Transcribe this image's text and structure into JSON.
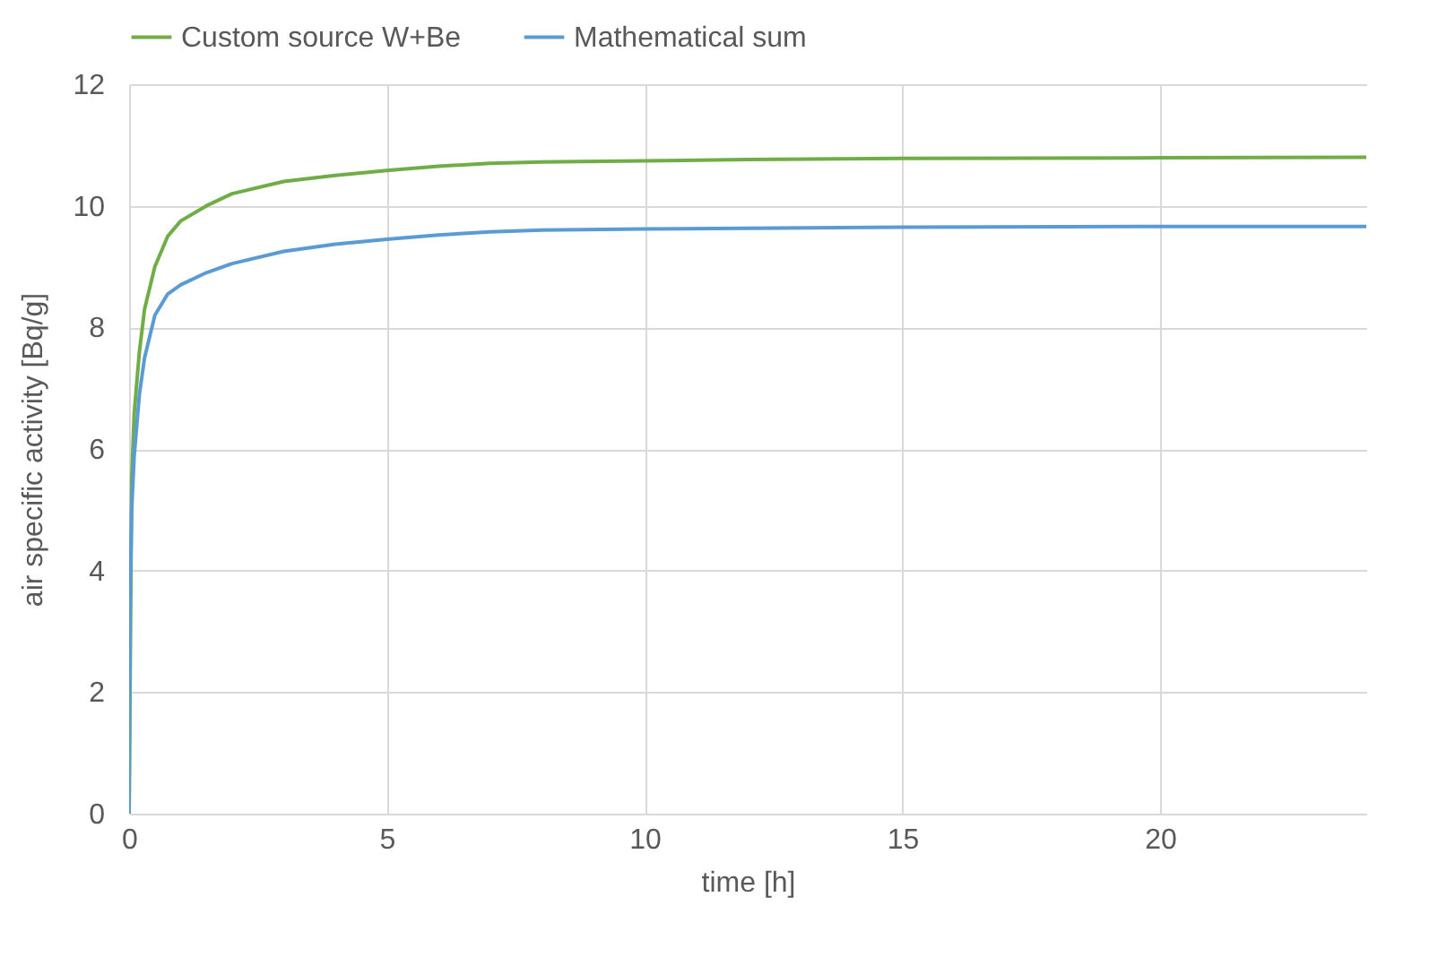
{
  "chart_data": {
    "type": "line",
    "xlabel": "time [h]",
    "ylabel": "air specific activity [Bq/g]",
    "xlim": [
      0,
      24
    ],
    "xticks": [
      0,
      5,
      10,
      15,
      20
    ],
    "ylim": [
      0,
      12
    ],
    "yticks": [
      0,
      2,
      4,
      6,
      8,
      10,
      12
    ],
    "grid": true,
    "legend": "top",
    "marker": "none",
    "line_style": "solid",
    "x": [
      0,
      0.02,
      0.05,
      0.1,
      0.2,
      0.3,
      0.5,
      0.75,
      1,
      1.5,
      2,
      3,
      4,
      5,
      6,
      7,
      8,
      10,
      12,
      15,
      20,
      24
    ],
    "series": [
      {
        "name": "Custom source W+Be",
        "color": "#70ad47",
        "values": [
          0,
          null,
          5.5,
          6.6,
          7.6,
          8.3,
          9.0,
          9.5,
          9.75,
          10.0,
          10.2,
          10.4,
          10.5,
          10.58,
          10.65,
          10.7,
          10.72,
          10.74,
          10.76,
          10.78,
          10.79,
          10.8
        ]
      },
      {
        "name": "Mathematical sum",
        "color": "#5b9bd5",
        "values": [
          0,
          3.5,
          5,
          5.9,
          6.9,
          7.5,
          8.2,
          8.55,
          8.7,
          8.9,
          9.05,
          9.25,
          9.37,
          9.45,
          9.52,
          9.57,
          9.6,
          9.62,
          9.63,
          9.65,
          9.66,
          9.66
        ]
      }
    ]
  }
}
